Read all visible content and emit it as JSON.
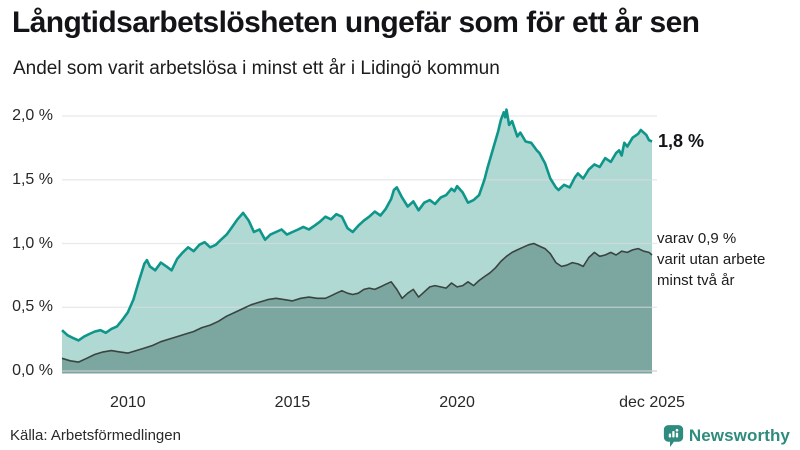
{
  "header": {
    "title": "Långtidsarbetslösheten ungefär som för ett år sen",
    "subtitle": "Andel som varit arbetslösa i minst ett år i Lidingö kommun"
  },
  "annotations": {
    "series1_value": "1,8 %",
    "series2_lines": [
      "varav 0,9 %",
      "varit utan arbete",
      "minst två år"
    ]
  },
  "footer": {
    "source": "Källa: Arbetsförmedlingen",
    "logo_text": "Newsworthy"
  },
  "colors": {
    "series1_line": "#0f968b",
    "series1_fill": "#b1d9d3",
    "series2_line": "#3a4440",
    "series2_fill": "#7ca7a0",
    "gridline": "#dadbdf",
    "zero_line": "#c9ccd0",
    "brand_teal": "#2e8b7e",
    "text_dark": "#121417"
  },
  "chart_data": {
    "type": "area",
    "title": "Långtidsarbetslösheten ungefär som för ett år sen",
    "subtitle": "Andel som varit arbetslösa i minst ett år i Lidingö kommun",
    "unit": "%",
    "x_range": [
      2008.0,
      2025.92
    ],
    "ylim": [
      0,
      2.0
    ],
    "grid": "horizontal",
    "legend_position": "right-annotations",
    "y_ticks": [
      {
        "value": 2.0,
        "label": "2,0 %"
      },
      {
        "value": 1.5,
        "label": "1,5 %"
      },
      {
        "value": 1.0,
        "label": "1,0 %"
      },
      {
        "value": 0.5,
        "label": "0,5 %"
      },
      {
        "value": 0.0,
        "label": "0,0 %"
      }
    ],
    "x_ticks": [
      {
        "value": 2010,
        "label": "2010"
      },
      {
        "value": 2015,
        "label": "2015"
      },
      {
        "value": 2020,
        "label": "2020"
      },
      {
        "value": 2025.92,
        "label": "dec 2025"
      }
    ],
    "series": [
      {
        "name": "Andel som varit arbetslösa i minst ett år",
        "end_label": "1,8 %",
        "end_value": 1.8,
        "line_color": "#0f968b",
        "fill_color": "#b1d9d3",
        "points": [
          [
            2008.0,
            0.32
          ],
          [
            2008.17,
            0.28
          ],
          [
            2008.33,
            0.26
          ],
          [
            2008.5,
            0.24
          ],
          [
            2008.67,
            0.27
          ],
          [
            2008.83,
            0.29
          ],
          [
            2009.0,
            0.31
          ],
          [
            2009.17,
            0.32
          ],
          [
            2009.33,
            0.3
          ],
          [
            2009.5,
            0.33
          ],
          [
            2009.67,
            0.35
          ],
          [
            2009.83,
            0.4
          ],
          [
            2010.0,
            0.46
          ],
          [
            2010.17,
            0.56
          ],
          [
            2010.33,
            0.7
          ],
          [
            2010.5,
            0.84
          ],
          [
            2010.58,
            0.87
          ],
          [
            2010.67,
            0.82
          ],
          [
            2010.83,
            0.79
          ],
          [
            2011.0,
            0.85
          ],
          [
            2011.17,
            0.82
          ],
          [
            2011.33,
            0.79
          ],
          [
            2011.5,
            0.88
          ],
          [
            2011.67,
            0.93
          ],
          [
            2011.83,
            0.97
          ],
          [
            2012.0,
            0.94
          ],
          [
            2012.17,
            0.99
          ],
          [
            2012.33,
            1.01
          ],
          [
            2012.5,
            0.97
          ],
          [
            2012.67,
            0.99
          ],
          [
            2012.83,
            1.03
          ],
          [
            2013.0,
            1.07
          ],
          [
            2013.17,
            1.13
          ],
          [
            2013.33,
            1.19
          ],
          [
            2013.5,
            1.24
          ],
          [
            2013.67,
            1.18
          ],
          [
            2013.83,
            1.09
          ],
          [
            2014.0,
            1.11
          ],
          [
            2014.17,
            1.03
          ],
          [
            2014.33,
            1.07
          ],
          [
            2014.5,
            1.09
          ],
          [
            2014.67,
            1.11
          ],
          [
            2014.83,
            1.07
          ],
          [
            2015.0,
            1.09
          ],
          [
            2015.17,
            1.11
          ],
          [
            2015.33,
            1.13
          ],
          [
            2015.5,
            1.11
          ],
          [
            2015.67,
            1.14
          ],
          [
            2015.83,
            1.17
          ],
          [
            2016.0,
            1.21
          ],
          [
            2016.17,
            1.19
          ],
          [
            2016.33,
            1.23
          ],
          [
            2016.5,
            1.21
          ],
          [
            2016.67,
            1.12
          ],
          [
            2016.83,
            1.09
          ],
          [
            2017.0,
            1.14
          ],
          [
            2017.17,
            1.18
          ],
          [
            2017.33,
            1.21
          ],
          [
            2017.5,
            1.25
          ],
          [
            2017.67,
            1.22
          ],
          [
            2017.83,
            1.27
          ],
          [
            2018.0,
            1.35
          ],
          [
            2018.08,
            1.42
          ],
          [
            2018.17,
            1.44
          ],
          [
            2018.33,
            1.36
          ],
          [
            2018.5,
            1.29
          ],
          [
            2018.67,
            1.33
          ],
          [
            2018.83,
            1.26
          ],
          [
            2019.0,
            1.32
          ],
          [
            2019.17,
            1.34
          ],
          [
            2019.33,
            1.31
          ],
          [
            2019.5,
            1.36
          ],
          [
            2019.67,
            1.38
          ],
          [
            2019.83,
            1.43
          ],
          [
            2019.92,
            1.41
          ],
          [
            2020.0,
            1.45
          ],
          [
            2020.17,
            1.4
          ],
          [
            2020.33,
            1.32
          ],
          [
            2020.5,
            1.34
          ],
          [
            2020.67,
            1.38
          ],
          [
            2020.83,
            1.5
          ],
          [
            2020.92,
            1.59
          ],
          [
            2021.08,
            1.73
          ],
          [
            2021.25,
            1.88
          ],
          [
            2021.33,
            1.97
          ],
          [
            2021.42,
            2.03
          ],
          [
            2021.46,
            1.99
          ],
          [
            2021.5,
            2.05
          ],
          [
            2021.58,
            1.93
          ],
          [
            2021.67,
            1.96
          ],
          [
            2021.83,
            1.84
          ],
          [
            2021.92,
            1.87
          ],
          [
            2022.08,
            1.8
          ],
          [
            2022.25,
            1.79
          ],
          [
            2022.42,
            1.73
          ],
          [
            2022.5,
            1.71
          ],
          [
            2022.67,
            1.63
          ],
          [
            2022.83,
            1.51
          ],
          [
            2023.0,
            1.44
          ],
          [
            2023.08,
            1.42
          ],
          [
            2023.25,
            1.46
          ],
          [
            2023.42,
            1.44
          ],
          [
            2023.58,
            1.52
          ],
          [
            2023.67,
            1.55
          ],
          [
            2023.83,
            1.51
          ],
          [
            2024.0,
            1.58
          ],
          [
            2024.17,
            1.62
          ],
          [
            2024.33,
            1.6
          ],
          [
            2024.5,
            1.67
          ],
          [
            2024.67,
            1.64
          ],
          [
            2024.83,
            1.71
          ],
          [
            2024.92,
            1.73
          ],
          [
            2025.0,
            1.69
          ],
          [
            2025.08,
            1.79
          ],
          [
            2025.17,
            1.76
          ],
          [
            2025.33,
            1.83
          ],
          [
            2025.5,
            1.86
          ],
          [
            2025.58,
            1.89
          ],
          [
            2025.75,
            1.85
          ],
          [
            2025.83,
            1.81
          ],
          [
            2025.92,
            1.8
          ]
        ]
      },
      {
        "name": "varav varit utan arbete minst två år",
        "end_label": "varav 0,9 % varit utan arbete minst två år",
        "end_value": 0.9,
        "line_color": "#3a4440",
        "fill_color": "#7ca7a0",
        "points": [
          [
            2008.0,
            0.1
          ],
          [
            2008.25,
            0.08
          ],
          [
            2008.5,
            0.07
          ],
          [
            2008.75,
            0.1
          ],
          [
            2009.0,
            0.13
          ],
          [
            2009.25,
            0.15
          ],
          [
            2009.5,
            0.16
          ],
          [
            2009.75,
            0.15
          ],
          [
            2010.0,
            0.14
          ],
          [
            2010.25,
            0.16
          ],
          [
            2010.5,
            0.18
          ],
          [
            2010.75,
            0.2
          ],
          [
            2011.0,
            0.23
          ],
          [
            2011.25,
            0.25
          ],
          [
            2011.5,
            0.27
          ],
          [
            2011.75,
            0.29
          ],
          [
            2012.0,
            0.31
          ],
          [
            2012.25,
            0.34
          ],
          [
            2012.5,
            0.36
          ],
          [
            2012.75,
            0.39
          ],
          [
            2013.0,
            0.43
          ],
          [
            2013.25,
            0.46
          ],
          [
            2013.5,
            0.49
          ],
          [
            2013.75,
            0.52
          ],
          [
            2014.0,
            0.54
          ],
          [
            2014.25,
            0.56
          ],
          [
            2014.5,
            0.57
          ],
          [
            2014.75,
            0.56
          ],
          [
            2015.0,
            0.55
          ],
          [
            2015.25,
            0.57
          ],
          [
            2015.5,
            0.58
          ],
          [
            2015.75,
            0.57
          ],
          [
            2016.0,
            0.57
          ],
          [
            2016.17,
            0.59
          ],
          [
            2016.33,
            0.61
          ],
          [
            2016.5,
            0.63
          ],
          [
            2016.67,
            0.61
          ],
          [
            2016.83,
            0.6
          ],
          [
            2017.0,
            0.61
          ],
          [
            2017.17,
            0.64
          ],
          [
            2017.33,
            0.65
          ],
          [
            2017.5,
            0.64
          ],
          [
            2017.67,
            0.66
          ],
          [
            2017.83,
            0.68
          ],
          [
            2018.0,
            0.7
          ],
          [
            2018.17,
            0.64
          ],
          [
            2018.33,
            0.57
          ],
          [
            2018.5,
            0.61
          ],
          [
            2018.67,
            0.64
          ],
          [
            2018.83,
            0.58
          ],
          [
            2019.0,
            0.62
          ],
          [
            2019.17,
            0.66
          ],
          [
            2019.33,
            0.67
          ],
          [
            2019.5,
            0.66
          ],
          [
            2019.67,
            0.65
          ],
          [
            2019.83,
            0.69
          ],
          [
            2020.0,
            0.66
          ],
          [
            2020.17,
            0.67
          ],
          [
            2020.33,
            0.7
          ],
          [
            2020.5,
            0.67
          ],
          [
            2020.67,
            0.71
          ],
          [
            2020.83,
            0.74
          ],
          [
            2021.0,
            0.77
          ],
          [
            2021.17,
            0.81
          ],
          [
            2021.33,
            0.86
          ],
          [
            2021.5,
            0.9
          ],
          [
            2021.67,
            0.93
          ],
          [
            2021.83,
            0.95
          ],
          [
            2022.0,
            0.97
          ],
          [
            2022.17,
            0.99
          ],
          [
            2022.33,
            1.0
          ],
          [
            2022.5,
            0.98
          ],
          [
            2022.67,
            0.96
          ],
          [
            2022.83,
            0.92
          ],
          [
            2023.0,
            0.85
          ],
          [
            2023.17,
            0.82
          ],
          [
            2023.33,
            0.83
          ],
          [
            2023.5,
            0.85
          ],
          [
            2023.67,
            0.84
          ],
          [
            2023.83,
            0.82
          ],
          [
            2024.0,
            0.89
          ],
          [
            2024.17,
            0.93
          ],
          [
            2024.33,
            0.9
          ],
          [
            2024.5,
            0.91
          ],
          [
            2024.67,
            0.93
          ],
          [
            2024.83,
            0.91
          ],
          [
            2025.0,
            0.94
          ],
          [
            2025.17,
            0.93
          ],
          [
            2025.33,
            0.95
          ],
          [
            2025.5,
            0.96
          ],
          [
            2025.67,
            0.94
          ],
          [
            2025.83,
            0.93
          ],
          [
            2025.92,
            0.91
          ]
        ]
      }
    ]
  }
}
